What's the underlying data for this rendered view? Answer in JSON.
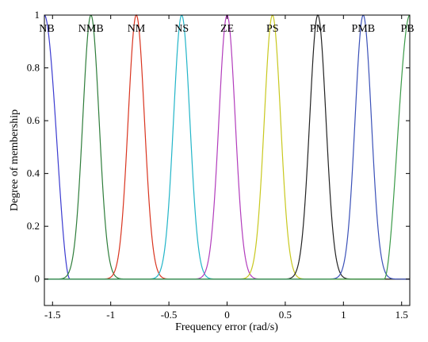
{
  "chart_data": {
    "type": "line",
    "title": "",
    "xlabel": "Frequency error (rad/s)",
    "ylabel": "Degree of membership",
    "xlim": [
      -1.57,
      1.57
    ],
    "ylim": [
      -0.1,
      1.0
    ],
    "xticks": [
      -1.5,
      -1,
      -0.5,
      0,
      0.5,
      1,
      1.5
    ],
    "xtick_labels": [
      "-1.5",
      "-1",
      "-0.5",
      "0",
      "0.5",
      "1",
      "1.5"
    ],
    "yticks": [
      0,
      0.2,
      0.4,
      0.6,
      0.8,
      1
    ],
    "ytick_labels": [
      "0",
      "0.2",
      "0.4",
      "0.6",
      "0.8",
      "1"
    ],
    "grid": false,
    "legend": "none",
    "series": [
      {
        "name": "NB",
        "shape": "z-shaped",
        "start": -1.57,
        "end": -1.35,
        "color": "#3a3ad0"
      },
      {
        "name": "NMB",
        "shape": "gaussian",
        "center": -1.17,
        "sigma": 0.07,
        "color": "#2e7d3a"
      },
      {
        "name": "NM",
        "shape": "gaussian",
        "center": -0.78,
        "sigma": 0.07,
        "color": "#d9341f"
      },
      {
        "name": "NS",
        "shape": "gaussian",
        "center": -0.39,
        "sigma": 0.07,
        "color": "#22b5c8"
      },
      {
        "name": "ZE",
        "shape": "gaussian",
        "center": 0.0,
        "sigma": 0.07,
        "color": "#b23cbc"
      },
      {
        "name": "PS",
        "shape": "gaussian",
        "center": 0.39,
        "sigma": 0.07,
        "color": "#c8c81e"
      },
      {
        "name": "PM",
        "shape": "gaussian",
        "center": 0.78,
        "sigma": 0.07,
        "color": "#222222"
      },
      {
        "name": "PMB",
        "shape": "gaussian",
        "center": 1.17,
        "sigma": 0.07,
        "color": "#3a50b8"
      },
      {
        "name": "PB",
        "shape": "s-shaped",
        "start": 1.35,
        "end": 1.57,
        "color": "#3a9a48"
      }
    ]
  }
}
